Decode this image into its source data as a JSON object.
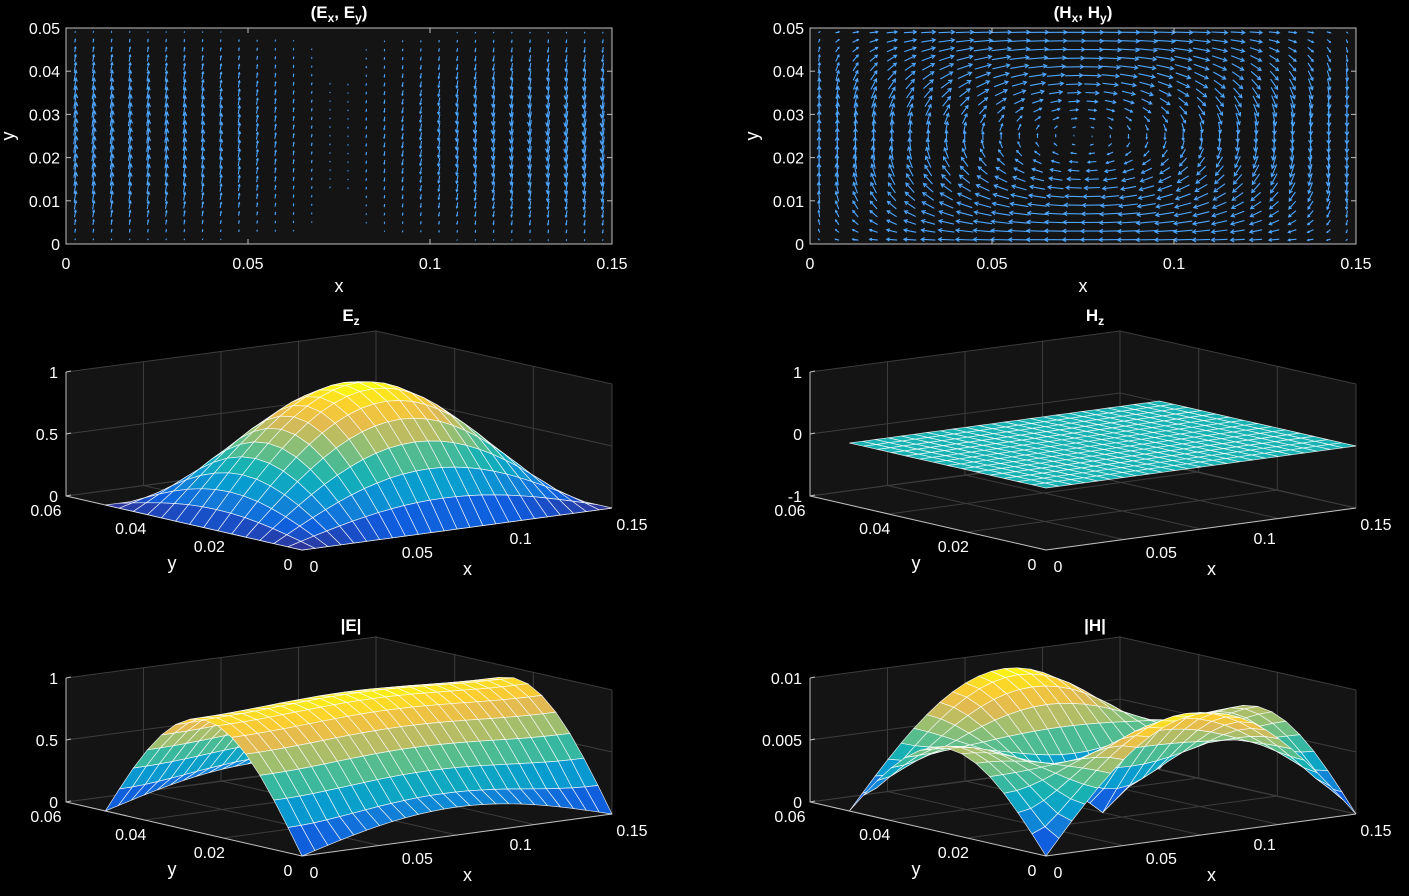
{
  "chart_data": [
    {
      "id": "exey",
      "type": "quiver",
      "title": "(Ex, Ey)",
      "title_main": "E",
      "title_sub1": "x",
      "title_sub2": "y",
      "xlabel": "x",
      "ylabel": "y",
      "xlim": [
        0,
        0.15
      ],
      "ylim": [
        0,
        0.05
      ],
      "xticks": [
        "0",
        "0.05",
        "0.1",
        "0.15"
      ],
      "xtick_values": [
        0,
        0.05,
        0.1,
        0.15
      ],
      "yticks": [
        "0",
        "0.01",
        "0.02",
        "0.03",
        "0.04",
        "0.05"
      ],
      "ytick_values": [
        0,
        0.01,
        0.02,
        0.03,
        0.04,
        0.05
      ],
      "field": "E_transverse",
      "color": "#4da6ff"
    },
    {
      "id": "hxhy",
      "type": "quiver",
      "title": "(Hx, Hy)",
      "title_main": "H",
      "title_sub1": "x",
      "title_sub2": "y",
      "xlabel": "x",
      "ylabel": "y",
      "xlim": [
        0,
        0.15
      ],
      "ylim": [
        0,
        0.05
      ],
      "xticks": [
        "0",
        "0.05",
        "0.1",
        "0.15"
      ],
      "xtick_values": [
        0,
        0.05,
        0.1,
        0.15
      ],
      "yticks": [
        "0",
        "0.01",
        "0.02",
        "0.03",
        "0.04",
        "0.05"
      ],
      "ytick_values": [
        0,
        0.01,
        0.02,
        0.03,
        0.04,
        0.05
      ],
      "field": "H_transverse",
      "color": "#4da6ff"
    },
    {
      "id": "ez",
      "type": "surface",
      "title": "Ez",
      "title_main": "E",
      "title_sub": "z",
      "xlabel": "x",
      "ylabel": "y",
      "zlim": [
        0,
        1
      ],
      "zticks": [
        "0",
        "0.5",
        "1"
      ],
      "ztick_values": [
        0,
        0.5,
        1
      ],
      "xticks": [
        "0",
        "0.05",
        "0.1",
        "0.15"
      ],
      "yticks": [
        "0",
        "0.02",
        "0.04",
        "0.06"
      ],
      "field": "Ez",
      "colormap": "parula"
    },
    {
      "id": "hz",
      "type": "surface",
      "title": "Hz",
      "title_main": "H",
      "title_sub": "z",
      "xlabel": "x",
      "ylabel": "y",
      "zlim": [
        -1,
        1
      ],
      "zticks": [
        "-1",
        "0",
        "1"
      ],
      "ztick_values": [
        -1,
        0,
        1
      ],
      "xticks": [
        "0",
        "0.05",
        "0.1",
        "0.15"
      ],
      "yticks": [
        "0",
        "0.02",
        "0.04",
        "0.06"
      ],
      "field": "zero",
      "colormap": "parula"
    },
    {
      "id": "emag",
      "type": "surface",
      "title": "|E|",
      "xlabel": "x",
      "ylabel": "y",
      "zlim": [
        0,
        1
      ],
      "zticks": [
        "0",
        "0.5",
        "1"
      ],
      "ztick_values": [
        0,
        0.5,
        1
      ],
      "xticks": [
        "0",
        "0.05",
        "0.1",
        "0.15"
      ],
      "yticks": [
        "0",
        "0.02",
        "0.04",
        "0.06"
      ],
      "field": "Emag",
      "colormap": "parula"
    },
    {
      "id": "hmag",
      "type": "surface",
      "title": "|H|",
      "xlabel": "x",
      "ylabel": "y",
      "zlim": [
        0,
        0.01
      ],
      "zticks": [
        "0",
        "0.005",
        "0.01"
      ],
      "ztick_values": [
        0,
        0.005,
        0.01
      ],
      "xticks": [
        "0",
        "0.05",
        "0.1",
        "0.15"
      ],
      "yticks": [
        "0",
        "0.02",
        "0.04",
        "0.06"
      ],
      "field": "Hmag",
      "colormap": "parula"
    }
  ],
  "colors": {
    "background": "#000000",
    "axes_background": "#141414",
    "grid": "#3c3c3c",
    "axis_line": "#bfbfbf",
    "quiver": "#4da6ff",
    "mesh": "#ffffff"
  }
}
